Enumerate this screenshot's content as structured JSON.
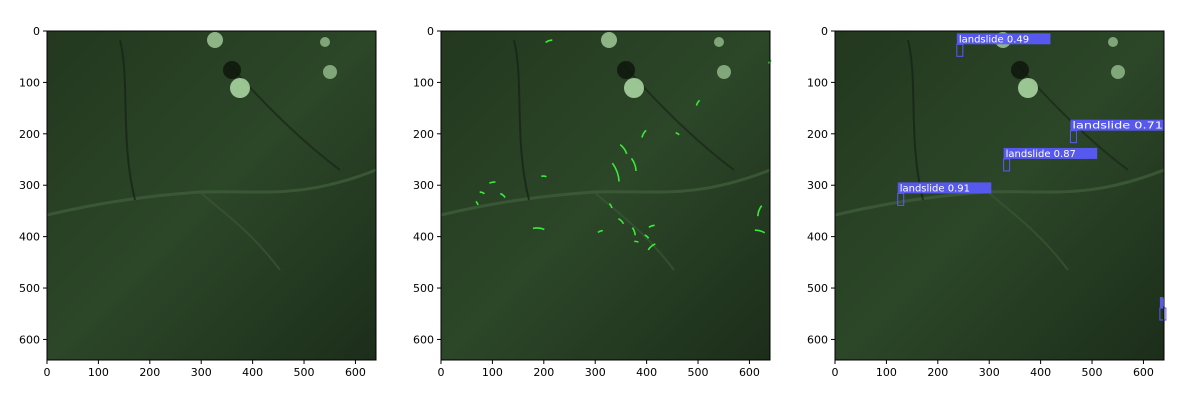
{
  "axis": {
    "x_ticks": [
      "0",
      "100",
      "200",
      "300",
      "400",
      "500",
      "600"
    ],
    "y_ticks": [
      "0",
      "100",
      "200",
      "300",
      "400",
      "500",
      "600"
    ],
    "x_tick_values": [
      0,
      100,
      200,
      300,
      400,
      500,
      600
    ],
    "y_tick_values": [
      0,
      100,
      200,
      300,
      400,
      500,
      600
    ],
    "xlim": [
      0,
      640
    ],
    "ylim": [
      640,
      0
    ]
  },
  "colors": {
    "terrain_dark": "#1a2a18",
    "terrain_mid": "#2e4a2c",
    "snow": "#b9e6b0",
    "contour_green": "#3bea3b",
    "box_blue": "#5a5aff"
  },
  "contours": [
    {
      "x": 210,
      "y": 20,
      "len": 14,
      "angle": -20
    },
    {
      "x": 640,
      "y": 60,
      "len": 8,
      "angle": -50
    },
    {
      "x": 500,
      "y": 140,
      "len": 12,
      "angle": -60
    },
    {
      "x": 460,
      "y": 200,
      "len": 8,
      "angle": 30
    },
    {
      "x": 355,
      "y": 230,
      "len": 22,
      "angle": 55
    },
    {
      "x": 375,
      "y": 260,
      "len": 26,
      "angle": 70
    },
    {
      "x": 340,
      "y": 275,
      "len": 38,
      "angle": 70
    },
    {
      "x": 395,
      "y": 200,
      "len": 16,
      "angle": -60
    },
    {
      "x": 200,
      "y": 283,
      "len": 10,
      "angle": 5
    },
    {
      "x": 100,
      "y": 295,
      "len": 12,
      "angle": -10
    },
    {
      "x": 80,
      "y": 315,
      "len": 10,
      "angle": 20
    },
    {
      "x": 120,
      "y": 320,
      "len": 12,
      "angle": 40
    },
    {
      "x": 70,
      "y": 335,
      "len": 8,
      "angle": 60
    },
    {
      "x": 330,
      "y": 340,
      "len": 10,
      "angle": 60
    },
    {
      "x": 350,
      "y": 370,
      "len": 14,
      "angle": 45
    },
    {
      "x": 190,
      "y": 385,
      "len": 22,
      "angle": 5
    },
    {
      "x": 310,
      "y": 390,
      "len": 10,
      "angle": -20
    },
    {
      "x": 375,
      "y": 390,
      "len": 16,
      "angle": 70
    },
    {
      "x": 410,
      "y": 380,
      "len": 12,
      "angle": -20
    },
    {
      "x": 400,
      "y": 400,
      "len": 10,
      "angle": 40
    },
    {
      "x": 410,
      "y": 420,
      "len": 18,
      "angle": -40
    },
    {
      "x": 380,
      "y": 410,
      "len": 8,
      "angle": 10
    },
    {
      "x": 620,
      "y": 350,
      "len": 22,
      "angle": -70
    },
    {
      "x": 620,
      "y": 390,
      "len": 20,
      "angle": 15
    }
  ],
  "detections": [
    {
      "label": "landslide 0.49",
      "x": 237,
      "y": 22
    },
    {
      "label": "landslide 0.71",
      "x": 458,
      "y": 190
    },
    {
      "label": "landslide 0.87",
      "x": 328,
      "y": 245
    },
    {
      "label": "landslide 0.91",
      "x": 122,
      "y": 312
    },
    {
      "label": "l",
      "x": 632,
      "y": 535
    }
  ]
}
